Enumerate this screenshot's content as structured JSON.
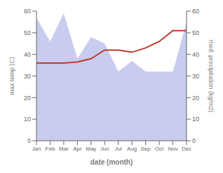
{
  "chart_data": {
    "type": "line",
    "categories": [
      "Jan",
      "Feb",
      "Mar",
      "Apr",
      "May",
      "Jun",
      "Jul",
      "Aug",
      "Sep",
      "Oct",
      "Nov",
      "Dec"
    ],
    "series": [
      {
        "type": "area",
        "color": "#c8ccee",
        "axis": "y2",
        "values": [
          57,
          46,
          59,
          38,
          48,
          45,
          32,
          37,
          32,
          32,
          32,
          55
        ]
      },
      {
        "type": "line",
        "color": "#c0392b",
        "values": [
          36,
          36,
          36,
          36.5,
          38,
          42,
          42,
          41,
          43,
          46,
          51,
          51
        ]
      }
    ],
    "xlabel": "date (month)",
    "ylabel": "max temp (C)",
    "y2label": "med. precipitation (kg/m2)",
    "ylim": [
      0,
      60
    ],
    "yticks": [
      0,
      10,
      20,
      30,
      40,
      50,
      60
    ],
    "y2lim": [
      0,
      60
    ],
    "y2ticks": [
      0,
      10,
      20,
      30,
      40,
      50,
      60
    ],
    "grid": false
  }
}
